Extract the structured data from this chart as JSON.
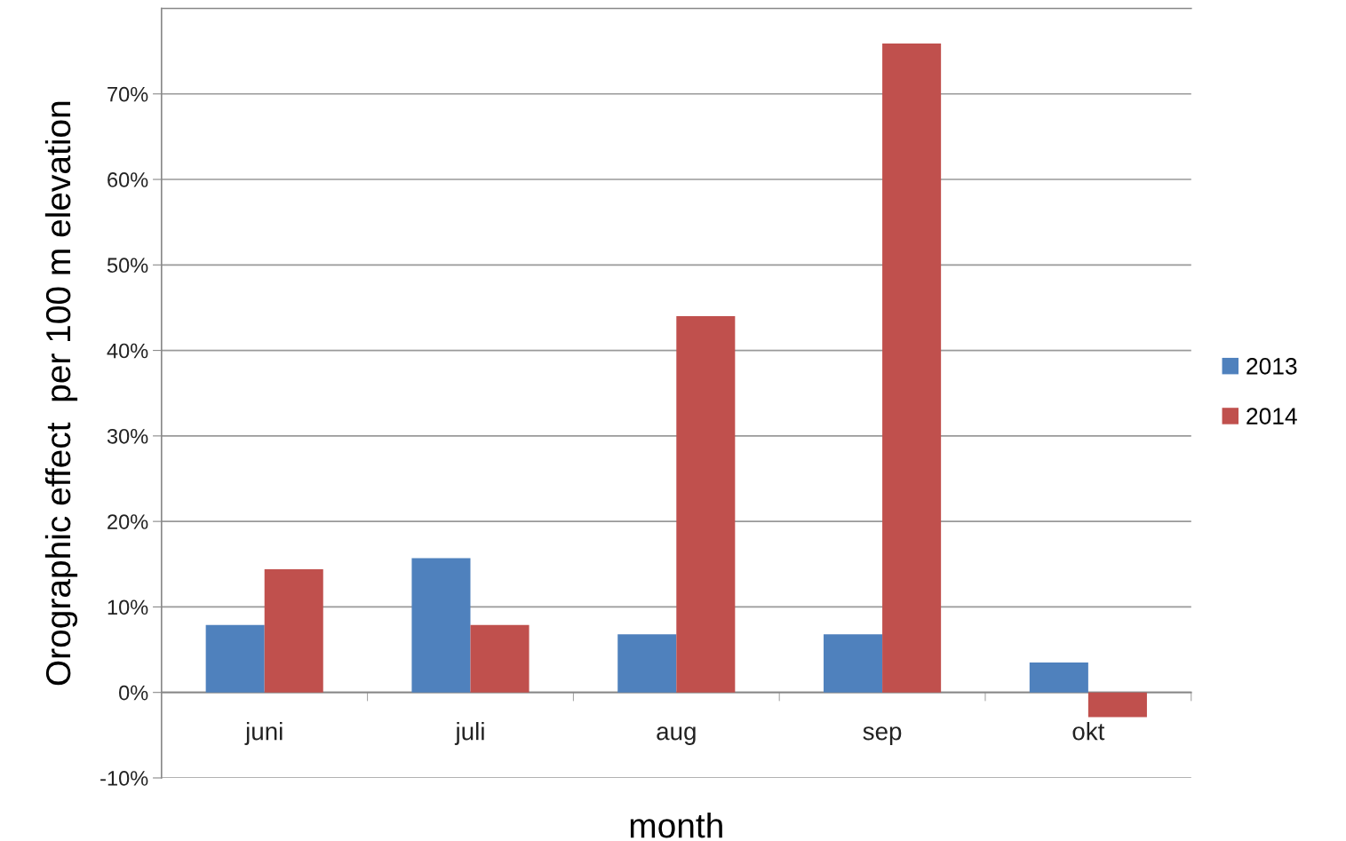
{
  "chart_data": {
    "type": "bar",
    "xlabel": "month",
    "ylabel": "Orographic effect  per 100 m elevation",
    "categories": [
      "juni",
      "juli",
      "aug",
      "sep",
      "okt"
    ],
    "series": [
      {
        "name": "2013",
        "color": "#4f81bd",
        "values": [
          7.9,
          15.7,
          6.8,
          6.8,
          3.5
        ]
      },
      {
        "name": "2014",
        "color": "#c0504d",
        "values": [
          14.4,
          7.9,
          44.0,
          75.9,
          -2.9
        ]
      }
    ],
    "ylim": [
      -10,
      80
    ],
    "yticks": [
      {
        "value": -10,
        "label": "-10%"
      },
      {
        "value": 0,
        "label": "0%"
      },
      {
        "value": 10,
        "label": "10%"
      },
      {
        "value": 20,
        "label": "20%"
      },
      {
        "value": 30,
        "label": "30%"
      },
      {
        "value": 40,
        "label": "40%"
      },
      {
        "value": 50,
        "label": "50%"
      },
      {
        "value": 60,
        "label": "60%"
      },
      {
        "value": 70,
        "label": "70%"
      }
    ],
    "grid": "y",
    "legend": "right"
  }
}
